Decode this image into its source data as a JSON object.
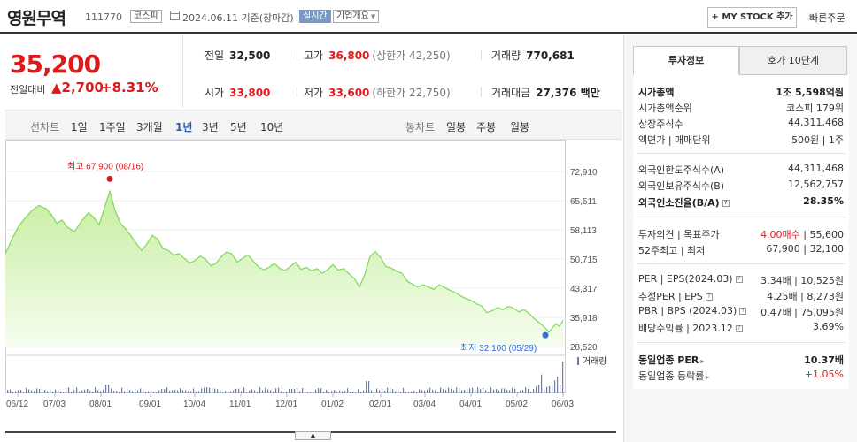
{
  "header": {
    "name": "영원무역",
    "code": "111770",
    "market": "코스피",
    "date": "2024.06.11 기준(장마감)",
    "realtime": "실시간",
    "company_info": "기업개요",
    "mystock": "+ MY STOCK 추가",
    "quick_order": "빠른주문"
  },
  "price": {
    "current": "35,200",
    "change_label": "전일대비",
    "change": "▲2,700",
    "change_pct": "+8.31%"
  },
  "stats": {
    "prev_label": "전일",
    "prev": "32,500",
    "high_label": "고가",
    "high": "36,800",
    "upper_limit": "(상한가 42,250)",
    "volume_label": "거래량",
    "volume": "770,681",
    "open_label": "시가",
    "open": "33,800",
    "low_label": "저가",
    "low": "33,600",
    "lower_limit": "(하한가 22,750)",
    "amount_label": "거래대금",
    "amount": "27,376 백만"
  },
  "range": {
    "line_label": "선차트",
    "items": [
      "1일",
      "1주일",
      "3개월",
      "1년",
      "3년",
      "5년",
      "10년"
    ],
    "active": "1년",
    "candle_label": "봉차트",
    "candle_items": [
      "일봉",
      "주봉",
      "월봉"
    ]
  },
  "chart_data": {
    "type": "area",
    "y_ticks": [
      "72,910",
      "65,511",
      "58,113",
      "50,715",
      "43,317",
      "35,918",
      "28,520"
    ],
    "ylim": [
      28520,
      72910
    ],
    "x_ticks": [
      "06/12",
      "07/03",
      "08/01",
      "09/01",
      "10/04",
      "11/01",
      "12/01",
      "01/02",
      "02/01",
      "03/04",
      "04/01",
      "05/02",
      "06/03"
    ],
    "max_annotation": "최고 67,900 (08/16)",
    "min_annotation": "최저 32,100 (05/29)",
    "volume_label": "거래량",
    "colors": {
      "line": "#7ed957",
      "fill": "#e6f8da",
      "max": "#e0191b",
      "min": "#2b6fd6",
      "volume": "#6f7ea8"
    }
  },
  "tabs": {
    "active": "투자정보",
    "inactive": "호가 10단계"
  },
  "info": {
    "market_cap_label": "시가총액",
    "market_cap": "1조 5,598억원",
    "rank_label": "시가총액순위",
    "rank": "코스피 179위",
    "shares_label": "상장주식수",
    "shares": "44,311,468",
    "par_label": "액면가 | 매매단위",
    "par": "500원 | 1주",
    "foreign_limit_label": "외국인한도주식수(A)",
    "foreign_limit": "44,311,468",
    "foreign_hold_label": "외국인보유주식수(B)",
    "foreign_hold": "12,562,757",
    "foreign_ratio_label": "외국인소진율(B/A)",
    "foreign_ratio": "28.35%",
    "opinion_label": "투자의견 | 목표주가",
    "opinion": "4.00매수",
    "target": "| 55,600",
    "week52_label": "52주최고 | 최저",
    "week52": "67,900 | 32,100",
    "per_label": "PER | EPS(2024.03)",
    "per": "3.34배 | 10,525원",
    "est_per_label": "추정PER | EPS",
    "est_per": "4.25배 | 8,273원",
    "pbr_label": "PBR | BPS (2024.03)",
    "pbr": "0.47배 | 75,095원",
    "dividend_label": "배당수익률 | 2023.12",
    "dividend": "3.69%",
    "sector_per_label": "동일업종 PER",
    "sector_per": "10.37배",
    "sector_chg_label": "동일업종 등락률",
    "sector_chg": "+1.05%"
  }
}
